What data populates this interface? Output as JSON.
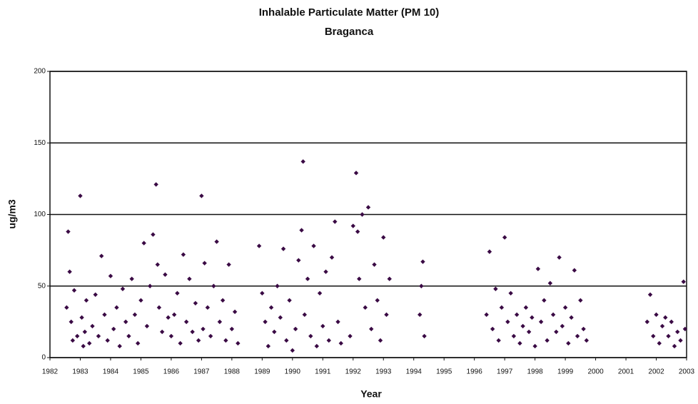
{
  "chart_data": {
    "type": "scatter",
    "title": "Inhalable Particulate Matter (PM 10)",
    "subtitle": "Braganca",
    "x_label": "Year",
    "y_label": "ug/m3",
    "color": "#3a0a44",
    "xlim": [
      1982,
      2003
    ],
    "ylim": [
      0,
      200
    ],
    "xticks": [
      1982,
      1983,
      1984,
      1985,
      1986,
      1987,
      1988,
      1989,
      1990,
      1991,
      1992,
      1993,
      1994,
      1995,
      1996,
      1997,
      1998,
      1999,
      2000,
      2001,
      2002,
      2003
    ],
    "yticks": [
      0,
      50,
      100,
      150,
      200
    ],
    "grid": true,
    "x": [
      1982.55,
      1982.6,
      1982.65,
      1982.7,
      1982.75,
      1982.8,
      1982.9,
      1983.0,
      1983.05,
      1983.1,
      1983.15,
      1983.2,
      1983.3,
      1983.4,
      1983.5,
      1983.6,
      1983.7,
      1983.8,
      1983.9,
      1984.0,
      1984.1,
      1984.2,
      1984.3,
      1984.4,
      1984.5,
      1984.6,
      1984.7,
      1984.8,
      1984.9,
      1985.0,
      1985.1,
      1985.2,
      1985.3,
      1985.4,
      1985.5,
      1985.55,
      1985.6,
      1985.7,
      1985.8,
      1985.9,
      1986.0,
      1986.1,
      1986.2,
      1986.3,
      1986.4,
      1986.5,
      1986.6,
      1986.7,
      1986.8,
      1986.9,
      1987.0,
      1987.05,
      1987.1,
      1987.2,
      1987.3,
      1987.4,
      1987.5,
      1987.6,
      1987.7,
      1987.8,
      1987.9,
      1988.0,
      1988.1,
      1988.2,
      1988.9,
      1989.0,
      1989.1,
      1989.2,
      1989.3,
      1989.4,
      1989.5,
      1989.6,
      1989.7,
      1989.8,
      1989.9,
      1990.0,
      1990.1,
      1990.2,
      1990.3,
      1990.35,
      1990.4,
      1990.5,
      1990.6,
      1990.7,
      1990.8,
      1990.9,
      1991.0,
      1991.1,
      1991.2,
      1991.3,
      1991.4,
      1991.5,
      1991.6,
      1991.9,
      1992.0,
      1992.1,
      1992.15,
      1992.2,
      1992.3,
      1992.4,
      1992.5,
      1992.6,
      1992.7,
      1992.8,
      1992.9,
      1993.0,
      1993.1,
      1993.2,
      1994.2,
      1994.3,
      1994.35,
      1994.25,
      1996.4,
      1996.5,
      1996.6,
      1996.7,
      1996.8,
      1996.9,
      1997.0,
      1997.1,
      1997.2,
      1997.3,
      1997.4,
      1997.5,
      1997.6,
      1997.7,
      1997.8,
      1997.9,
      1998.0,
      1998.1,
      1998.2,
      1998.3,
      1998.4,
      1998.5,
      1998.6,
      1998.7,
      1998.8,
      1998.9,
      1999.0,
      1999.1,
      1999.2,
      1999.3,
      1999.4,
      1999.5,
      1999.6,
      1999.7,
      2001.7,
      2001.8,
      2001.9,
      2002.0,
      2002.1,
      2002.2,
      2002.3,
      2002.4,
      2002.5,
      2002.6,
      2002.7,
      2002.8,
      2002.9,
      2002.95
    ],
    "values": [
      35,
      88,
      60,
      25,
      12,
      47,
      15,
      113,
      28,
      8,
      18,
      40,
      10,
      22,
      44,
      15,
      71,
      30,
      12,
      57,
      20,
      35,
      8,
      48,
      25,
      15,
      55,
      30,
      10,
      40,
      80,
      22,
      50,
      86,
      121,
      65,
      35,
      18,
      58,
      28,
      15,
      30,
      45,
      10,
      72,
      25,
      55,
      18,
      38,
      12,
      113,
      20,
      66,
      35,
      15,
      50,
      81,
      25,
      40,
      12,
      65,
      20,
      32,
      10,
      78,
      45,
      25,
      8,
      35,
      18,
      50,
      28,
      76,
      12,
      40,
      5,
      20,
      68,
      89,
      137,
      30,
      55,
      15,
      78,
      8,
      45,
      22,
      60,
      12,
      70,
      95,
      25,
      10,
      15,
      92,
      129,
      88,
      55,
      100,
      35,
      105,
      20,
      65,
      40,
      12,
      84,
      30,
      55,
      30,
      67,
      15,
      50,
      30,
      74,
      20,
      48,
      12,
      35,
      84,
      25,
      45,
      15,
      30,
      10,
      22,
      35,
      18,
      28,
      8,
      62,
      25,
      40,
      12,
      52,
      30,
      18,
      70,
      22,
      35,
      10,
      28,
      61,
      15,
      40,
      20,
      12,
      25,
      44,
      15,
      30,
      10,
      22,
      28,
      15,
      25,
      8,
      18,
      12,
      53,
      20
    ]
  }
}
